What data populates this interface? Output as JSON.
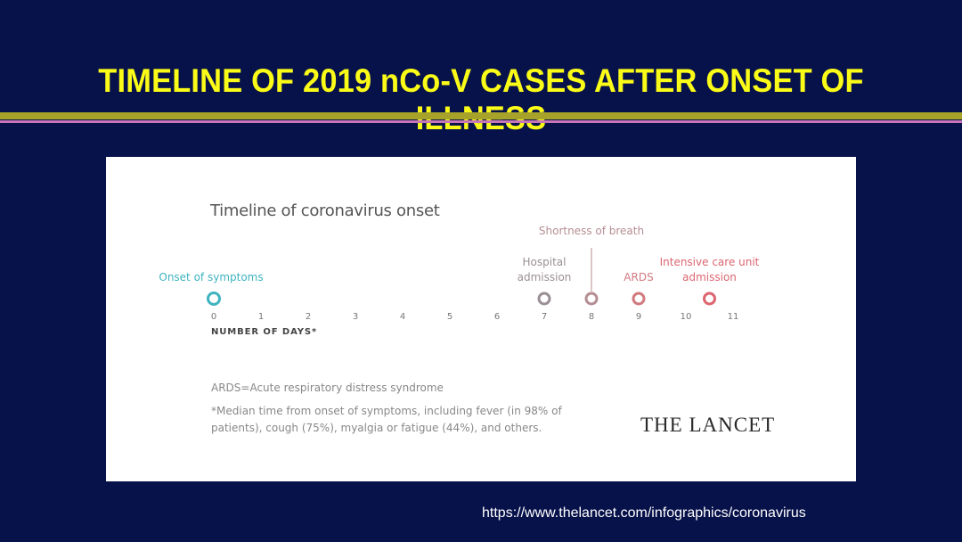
{
  "slide": {
    "title": "TIMELINE OF 2019 nCo-V CASES AFTER ONSET OF ILLNESS",
    "source_url": "https://www.thelancet.com/infographics/coronavirus",
    "colors": {
      "background": "#07124a",
      "title": "#fbfb18",
      "rule_olive": "#a7a22a",
      "rule_pink": "#c776b8"
    }
  },
  "figure": {
    "title": "Timeline of coronavirus onset",
    "axis_title": "NUMBER OF DAYS*",
    "ards_note": "ARDS=Acute respiratory distress syndrome",
    "median_note": "*Median time from onset of symptoms, including fever (in 98% of patients), cough (75%), myalgia or fatigue (44%), and others.",
    "publisher": "THE LANCET"
  },
  "chart_data": {
    "type": "line",
    "title": "Timeline of coronavirus onset",
    "xlabel": "NUMBER OF DAYS*",
    "ylabel": "",
    "xlim": [
      0,
      11
    ],
    "ticks": [
      0,
      1,
      2,
      3,
      4,
      5,
      6,
      7,
      8,
      9,
      10,
      11
    ],
    "events": [
      {
        "day": 0,
        "label": "Onset of symptoms",
        "color": "#3fb3bf"
      },
      {
        "day": 7,
        "label": "Hospital admission",
        "color": "#9a8f95"
      },
      {
        "day": 8,
        "label": "Shortness of breath",
        "color": "#b58e93"
      },
      {
        "day": 9,
        "label": "ARDS",
        "color": "#d17a80"
      },
      {
        "day": 10.5,
        "label": "Intensive care unit admission",
        "color": "#dc6670"
      }
    ],
    "line_colors": [
      "#3fb3bf",
      "#8c8d95",
      "#e05860"
    ],
    "grid": false
  }
}
